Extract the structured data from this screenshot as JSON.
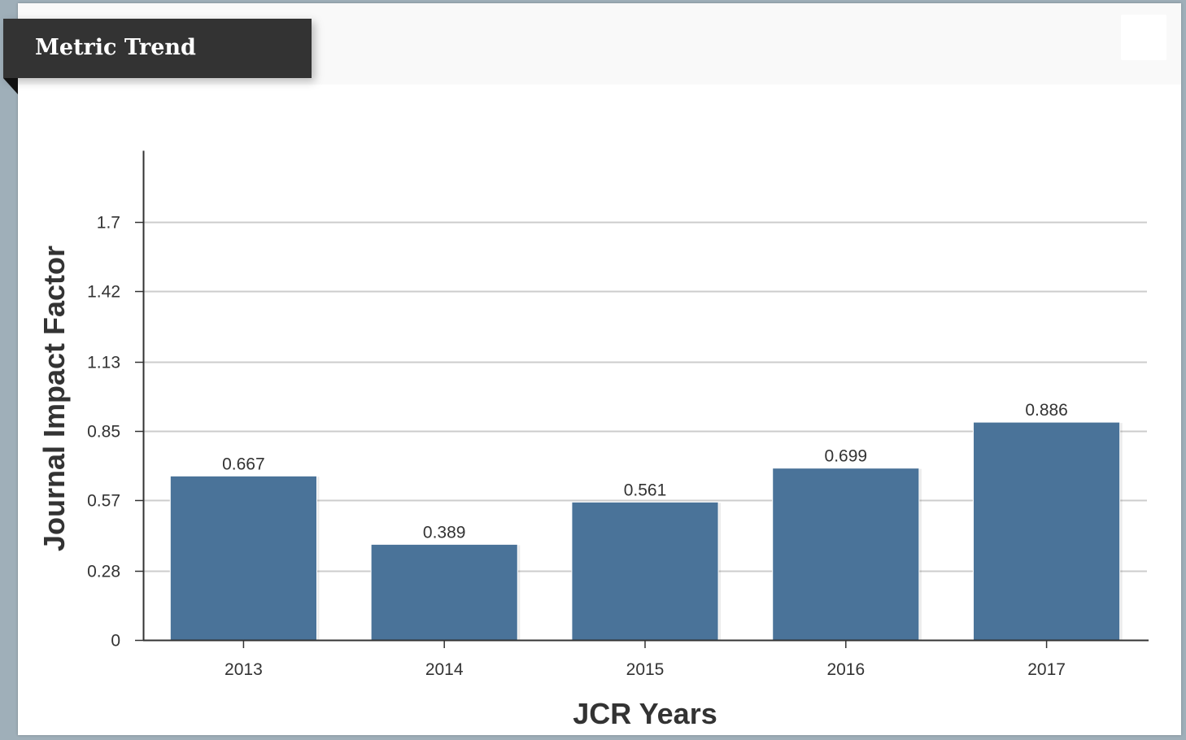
{
  "panel": {
    "title": "Metric Trend"
  },
  "colors": {
    "bar": "#4a7399",
    "grid": "#cccccc",
    "axis": "#333333"
  },
  "chart_data": {
    "type": "bar",
    "categories": [
      "2013",
      "2014",
      "2015",
      "2016",
      "2017"
    ],
    "values": [
      0.667,
      0.389,
      0.561,
      0.699,
      0.886
    ],
    "data_labels": [
      "0.667",
      "0.389",
      "0.561",
      "0.699",
      "0.886"
    ],
    "title": "",
    "xlabel": "JCR Years",
    "ylabel": "Journal Impact Factor",
    "ylim": [
      0,
      1.99
    ],
    "yticks": [
      0,
      0.28,
      0.57,
      0.85,
      1.13,
      1.42,
      1.7
    ],
    "ytick_labels": [
      "0",
      "0.28",
      "0.57",
      "0.85",
      "1.13",
      "1.42",
      "1.7"
    ],
    "grid": true,
    "legend": "none"
  }
}
